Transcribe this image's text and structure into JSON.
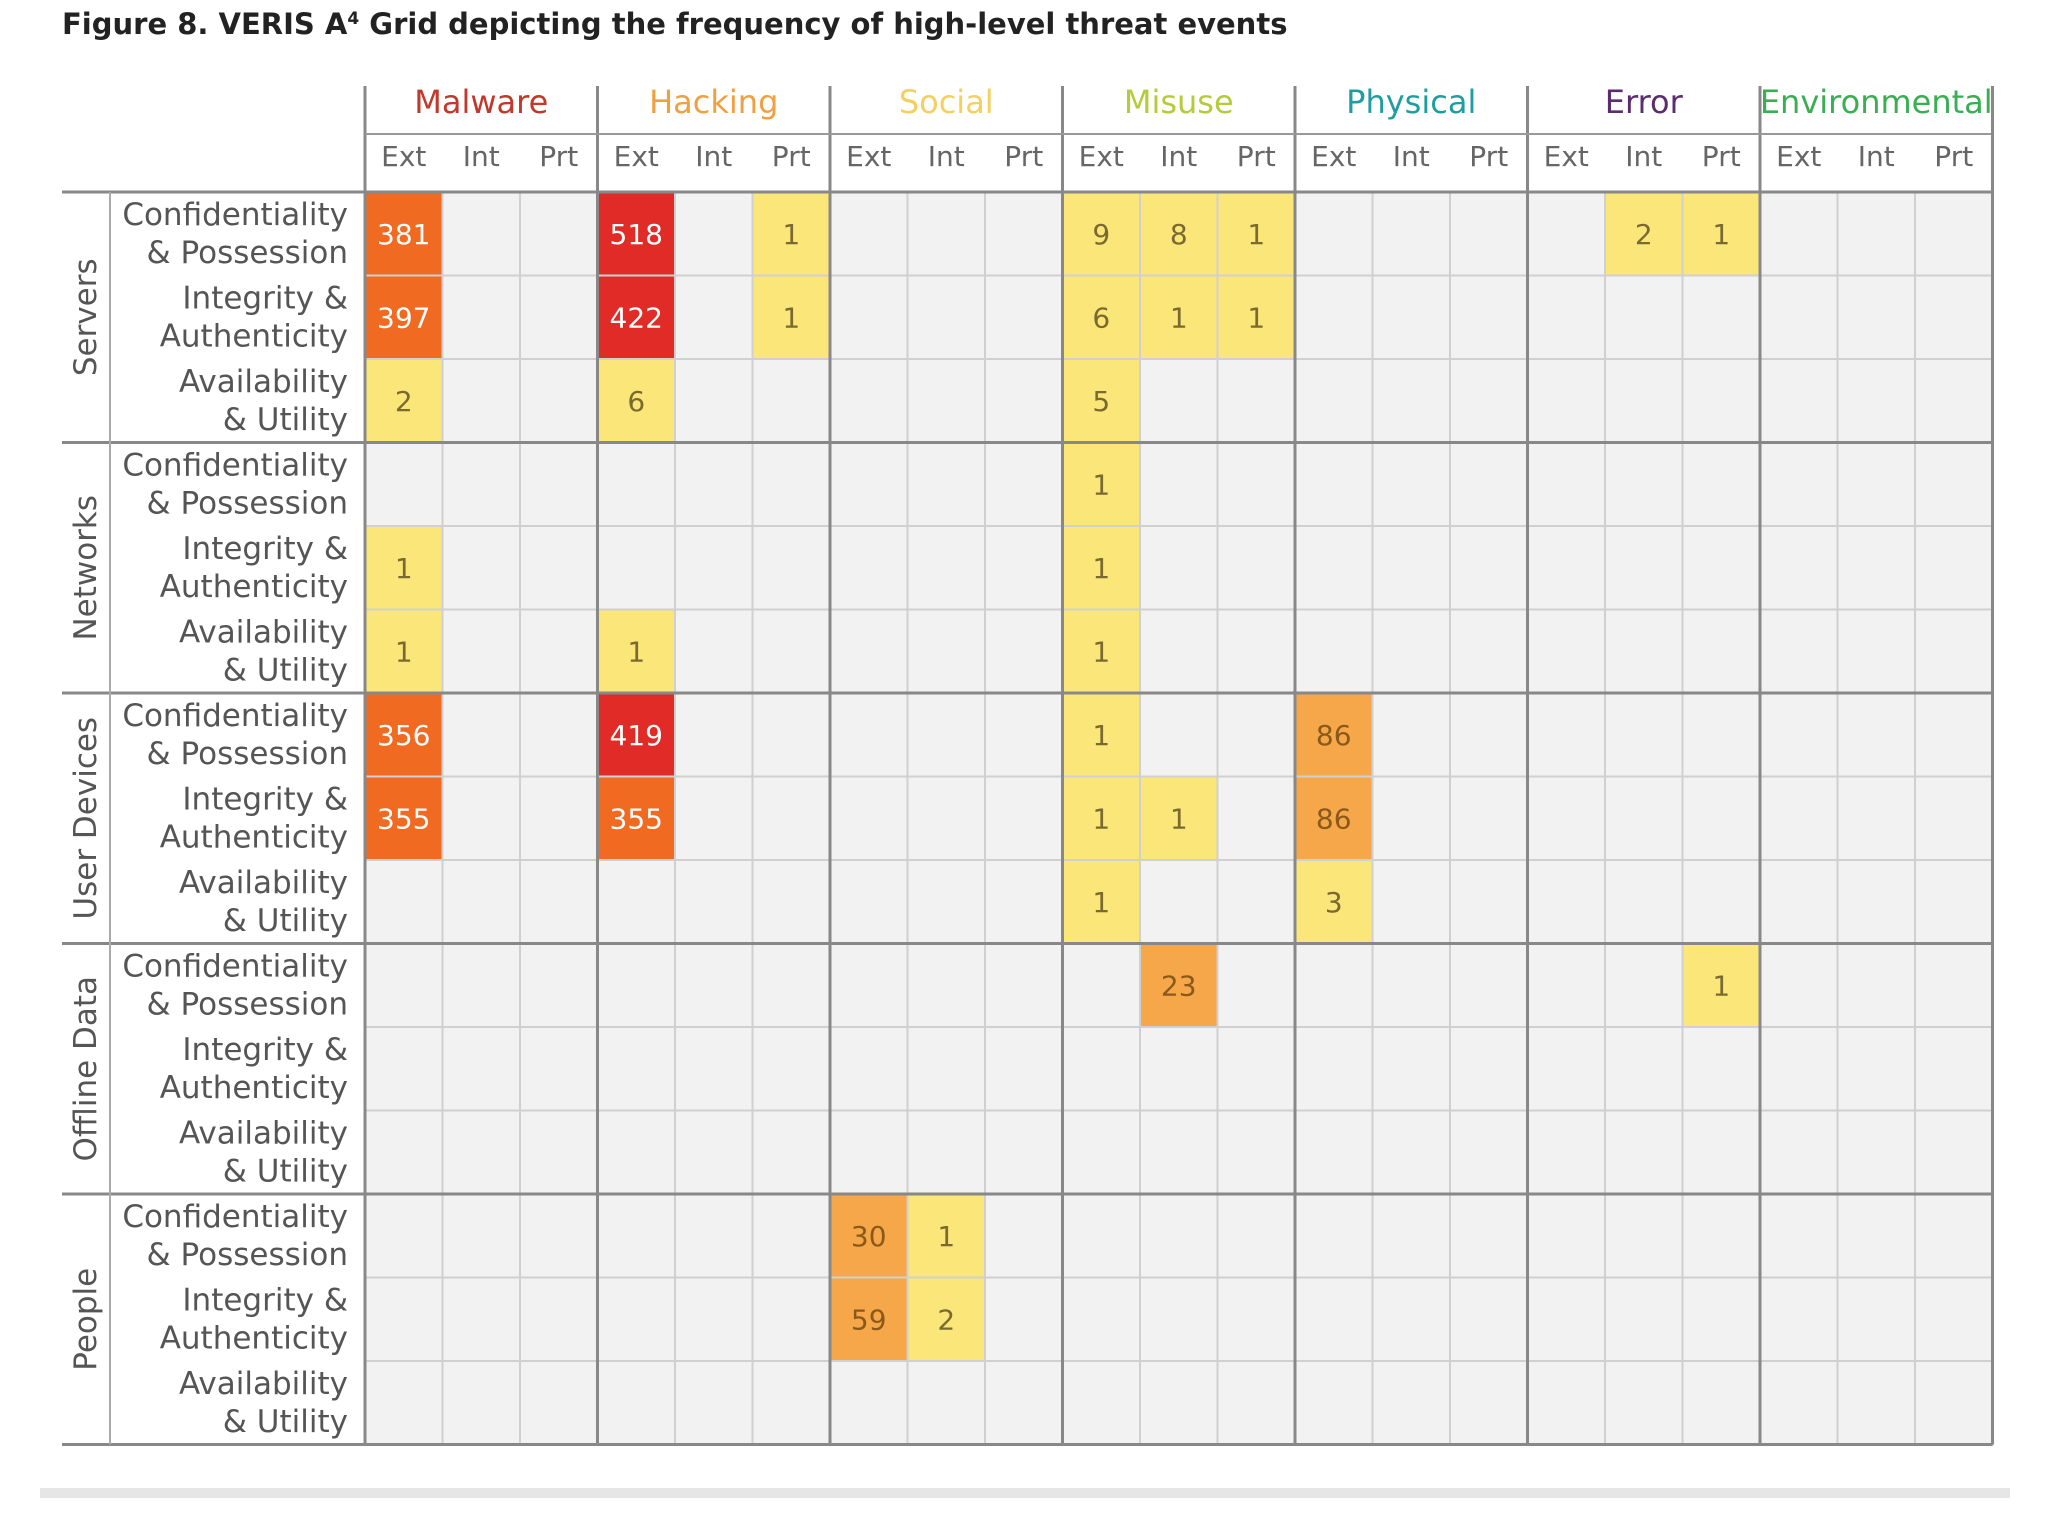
{
  "chart_data": {
    "type": "heatmap",
    "title": "Figure 8. VERIS A",
    "title_sup": "4",
    "title_rest": " Grid depicting the frequency of high-level threat events",
    "categories": [
      {
        "name": "Malware",
        "color": "#c0392b"
      },
      {
        "name": "Hacking",
        "color": "#f0a040"
      },
      {
        "name": "Social",
        "color": "#f5d060"
      },
      {
        "name": "Misuse",
        "color": "#b5cc3a"
      },
      {
        "name": "Physical",
        "color": "#1e9ea0"
      },
      {
        "name": "Error",
        "color": "#5a2d6e"
      },
      {
        "name": "Environmental",
        "color": "#3aae52"
      }
    ],
    "subcolumns": [
      "Ext",
      "Int",
      "Prt"
    ],
    "assets": [
      "Servers",
      "Networks",
      "User Devices",
      "Offline Data",
      "People"
    ],
    "properties": [
      [
        "Confidentiality",
        "& Possession"
      ],
      [
        "Integrity &",
        "Authenticity"
      ],
      [
        "Availability",
        "& Utility"
      ]
    ],
    "values": [
      [
        "381",
        "",
        "",
        "518",
        "",
        "1",
        "",
        "",
        "",
        "9",
        "8",
        "1",
        "",
        "",
        "",
        "",
        "2",
        "1",
        "",
        "",
        ""
      ],
      [
        "397",
        "",
        "",
        "422",
        "",
        "1",
        "",
        "",
        "",
        "6",
        "1",
        "1",
        "",
        "",
        "",
        "",
        "",
        "",
        "",
        "",
        ""
      ],
      [
        "2",
        "",
        "",
        "6",
        "",
        "",
        "",
        "",
        "",
        "5",
        "",
        "",
        "",
        "",
        "",
        "",
        "",
        "",
        "",
        "",
        ""
      ],
      [
        "",
        "",
        "",
        "",
        "",
        "",
        "",
        "",
        "",
        "1",
        "",
        "",
        "",
        "",
        "",
        "",
        "",
        "",
        "",
        "",
        ""
      ],
      [
        "1",
        "",
        "",
        "",
        "",
        "",
        "",
        "",
        "",
        "1",
        "",
        "",
        "",
        "",
        "",
        "",
        "",
        "",
        "",
        "",
        ""
      ],
      [
        "1",
        "",
        "",
        "1",
        "",
        "",
        "",
        "",
        "",
        "1",
        "",
        "",
        "",
        "",
        "",
        "",
        "",
        "",
        "",
        "",
        ""
      ],
      [
        "356",
        "",
        "",
        "419",
        "",
        "",
        "",
        "",
        "",
        "1",
        "",
        "",
        "86",
        "",
        "",
        "",
        "",
        "",
        "",
        "",
        ""
      ],
      [
        "355",
        "",
        "",
        "355",
        "",
        "",
        "",
        "",
        "",
        "1",
        "1",
        "",
        "86",
        "",
        "",
        "",
        "",
        "",
        "",
        "",
        ""
      ],
      [
        "",
        "",
        "",
        "",
        "",
        "",
        "",
        "",
        "",
        "1",
        "",
        "",
        "3",
        "",
        "",
        "",
        "",
        "",
        "",
        "",
        ""
      ],
      [
        "",
        "",
        "",
        "",
        "",
        "",
        "",
        "",
        "",
        "",
        "23",
        "",
        "",
        "",
        "",
        "",
        "",
        "1",
        "",
        "",
        ""
      ],
      [
        "",
        "",
        "",
        "",
        "",
        "",
        "",
        "",
        "",
        "",
        "",
        "",
        "",
        "",
        "",
        "",
        "",
        "",
        "",
        "",
        ""
      ],
      [
        "",
        "",
        "",
        "",
        "",
        "",
        "",
        "",
        "",
        "",
        "",
        "",
        "",
        "",
        "",
        "",
        "",
        "",
        "",
        "",
        ""
      ],
      [
        "",
        "",
        "",
        "",
        "",
        "",
        "30",
        "1",
        "",
        "",
        "",
        "",
        "",
        "",
        "",
        "",
        "",
        "",
        "",
        "",
        ""
      ],
      [
        "",
        "",
        "",
        "",
        "",
        "",
        "59",
        "2",
        "",
        "",
        "",
        "",
        "",
        "",
        "",
        "",
        "",
        "",
        "",
        "",
        ""
      ],
      [
        "",
        "",
        "",
        "",
        "",
        "",
        "",
        "",
        "",
        "",
        "",
        "",
        "",
        "",
        "",
        "",
        "",
        "",
        "",
        "",
        ""
      ]
    ],
    "color_scale": {
      "empty": "#f2f2f2",
      "low": "#fbe67a",
      "mid": "#f6a74a",
      "high": "#f06a22",
      "max": "#e12b26"
    }
  }
}
